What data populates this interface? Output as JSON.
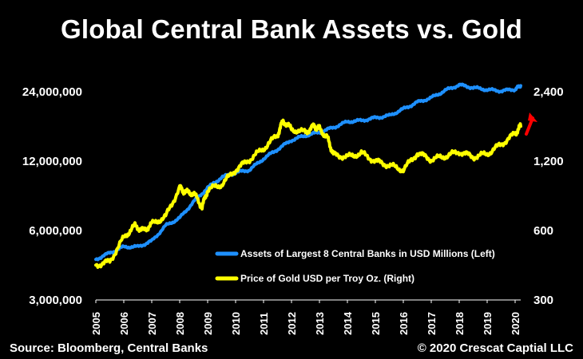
{
  "title": "Global Central Bank Assets vs. Gold",
  "footer": {
    "source": "Source: Bloomberg, Central Banks",
    "copyright": "© 2020 Crescat Captial LLC"
  },
  "colors": {
    "assets": "#1e90ff",
    "gold": "#ffff00",
    "arrow": "#ff0000",
    "background": "#000000",
    "text": "#ffffff"
  },
  "chart_data": {
    "type": "line",
    "title": "Global Central Bank Assets vs. Gold",
    "y_left": {
      "scale": "log",
      "range": [
        3000000,
        24000000
      ],
      "ticks": [
        3000000,
        6000000,
        12000000,
        24000000
      ],
      "tick_labels": [
        "3,000,000",
        "6,000,000",
        "12,000,000",
        "24,000,000"
      ]
    },
    "y_right": {
      "scale": "log",
      "range": [
        300,
        2400
      ],
      "ticks": [
        300,
        600,
        1200,
        2400
      ],
      "tick_labels": [
        "300",
        "600",
        "1,200",
        "2,400"
      ]
    },
    "x_ticks": [
      "2005",
      "2006",
      "2007",
      "2008",
      "2009",
      "2010",
      "2011",
      "2012",
      "2013",
      "2014",
      "2015",
      "2016",
      "2017",
      "2018",
      "2019",
      "2020"
    ],
    "legend_position": "lower-right",
    "annotation": "red upward arrow near right axis",
    "series": [
      {
        "name": "Assets of Largest 8 Central Banks in USD Millions (Left)",
        "axis": "left",
        "x": [
          2005.0,
          2005.5,
          2006.0,
          2006.5,
          2007.0,
          2007.5,
          2008.0,
          2008.5,
          2009.0,
          2009.5,
          2010.0,
          2010.5,
          2011.0,
          2011.5,
          2012.0,
          2012.5,
          2013.0,
          2013.5,
          2014.0,
          2014.5,
          2015.0,
          2015.5,
          2016.0,
          2016.5,
          2017.0,
          2017.5,
          2018.0,
          2018.5,
          2019.0,
          2019.5,
          2020.0,
          2020.2
        ],
        "values": [
          4500000,
          4800000,
          5100000,
          5100000,
          5400000,
          6300000,
          6800000,
          8000000,
          9200000,
          10200000,
          10700000,
          11000000,
          12300000,
          13500000,
          14800000,
          15500000,
          16000000,
          16800000,
          17800000,
          18000000,
          18500000,
          18900000,
          20200000,
          21600000,
          22600000,
          24300000,
          25700000,
          25000000,
          24500000,
          24200000,
          24600000,
          25500000
        ]
      },
      {
        "name": "Price of Gold USD per Troy Oz. (Right)",
        "axis": "right",
        "x": [
          2005.0,
          2005.5,
          2006.0,
          2006.4,
          2006.7,
          2007.0,
          2007.5,
          2008.0,
          2008.2,
          2008.5,
          2008.8,
          2009.0,
          2009.5,
          2010.0,
          2010.5,
          2011.0,
          2011.5,
          2011.7,
          2012.0,
          2012.5,
          2012.8,
          2013.0,
          2013.3,
          2013.5,
          2014.0,
          2014.5,
          2015.0,
          2015.5,
          2016.0,
          2016.5,
          2017.0,
          2017.5,
          2018.0,
          2018.5,
          2019.0,
          2019.5,
          2020.0,
          2020.2
        ],
        "values": [
          425,
          440,
          560,
          630,
          600,
          640,
          690,
          920,
          880,
          870,
          760,
          900,
          950,
          1100,
          1220,
          1360,
          1560,
          1800,
          1650,
          1600,
          1700,
          1660,
          1500,
          1280,
          1250,
          1300,
          1200,
          1150,
          1100,
          1300,
          1220,
          1260,
          1320,
          1250,
          1290,
          1420,
          1580,
          1700
        ]
      }
    ]
  }
}
